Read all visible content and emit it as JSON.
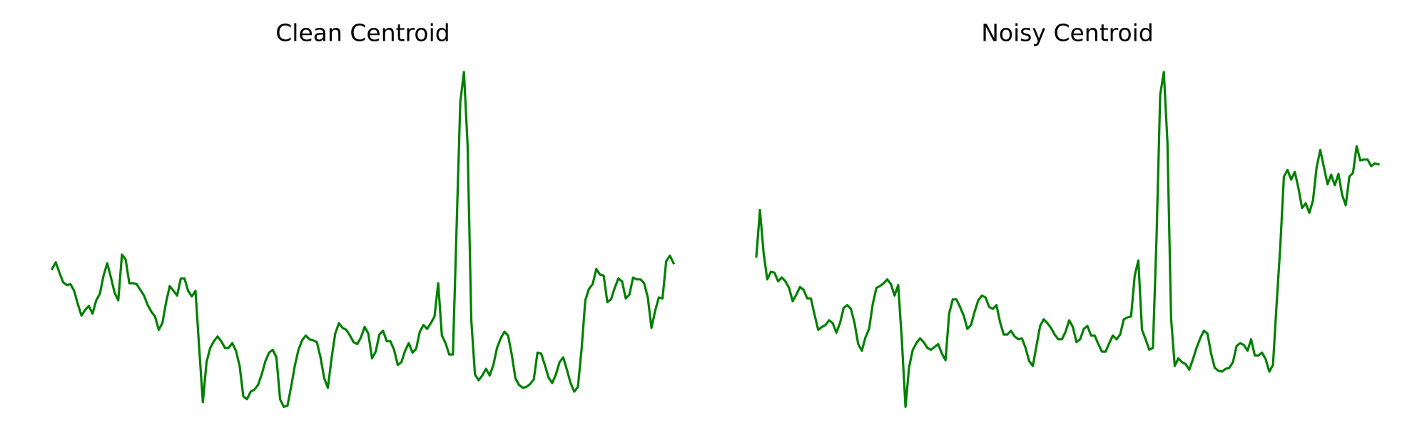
{
  "chart_data": [
    {
      "type": "line",
      "title": "Clean Centroid",
      "color": "#008000",
      "ylim": [
        0,
        360
      ],
      "values": [
        147,
        154,
        143,
        133,
        130,
        131,
        124,
        110,
        98,
        104,
        108,
        100,
        114,
        121,
        140,
        153,
        138,
        122,
        114,
        162,
        157,
        132,
        132,
        131,
        125,
        119,
        109,
        102,
        97,
        83,
        90,
        112,
        129,
        124,
        119,
        137,
        137,
        124,
        118,
        124,
        64,
        7,
        49,
        64,
        71,
        76,
        71,
        64,
        64,
        69,
        61,
        45,
        13,
        10,
        18,
        20,
        25,
        36,
        50,
        59,
        62,
        54,
        10,
        2,
        3,
        23,
        45,
        62,
        72,
        77,
        73,
        72,
        70,
        54,
        32,
        22,
        53,
        79,
        90,
        85,
        83,
        77,
        70,
        68,
        75,
        86,
        79,
        53,
        60,
        78,
        82,
        71,
        71,
        62,
        46,
        49,
        61,
        69,
        59,
        63,
        81,
        88,
        84,
        90,
        97,
        132,
        77,
        69,
        57,
        57,
        190,
        322,
        354,
        277,
        93,
        36,
        30,
        35,
        42,
        35,
        46,
        64,
        74,
        81,
        77,
        57,
        32,
        25,
        22,
        23,
        26,
        31,
        59,
        58,
        46,
        33,
        27,
        36,
        49,
        54,
        41,
        27,
        18,
        23,
        63,
        114,
        126,
        131,
        147,
        141,
        140,
        112,
        115,
        127,
        137,
        134,
        116,
        120,
        138,
        136,
        136,
        132,
        117,
        85,
        103,
        117,
        116,
        155,
        161,
        153
      ]
    },
    {
      "type": "line",
      "title": "Noisy Centroid",
      "color": "#008000",
      "ylim": [
        0,
        360
      ],
      "values": [
        160,
        209,
        164,
        136,
        144,
        143,
        134,
        138,
        134,
        127,
        113,
        120,
        128,
        125,
        116,
        116,
        99,
        83,
        86,
        88,
        93,
        90,
        80,
        90,
        106,
        109,
        105,
        90,
        68,
        61,
        75,
        84,
        110,
        127,
        129,
        132,
        136,
        131,
        119,
        130,
        72,
        2,
        44,
        62,
        69,
        74,
        70,
        64,
        62,
        65,
        68,
        58,
        51,
        100,
        115,
        115,
        107,
        98,
        84,
        88,
        102,
        114,
        119,
        117,
        107,
        105,
        109,
        91,
        78,
        78,
        82,
        76,
        73,
        74,
        64,
        50,
        45,
        66,
        87,
        94,
        90,
        85,
        78,
        73,
        73,
        81,
        93,
        86,
        70,
        73,
        84,
        87,
        77,
        77,
        68,
        60,
        60,
        69,
        77,
        73,
        78,
        94,
        96,
        97,
        140,
        156,
        83,
        73,
        62,
        64,
        180,
        330,
        354,
        280,
        95,
        45,
        53,
        49,
        47,
        41,
        52,
        64,
        74,
        82,
        79,
        58,
        43,
        40,
        39,
        42,
        43,
        49,
        66,
        69,
        67,
        61,
        73,
        56,
        56,
        59,
        52,
        39,
        46,
        110,
        170,
        244,
        251,
        241,
        249,
        232,
        211,
        216,
        206,
        219,
        254,
        272,
        254,
        236,
        246,
        235,
        247,
        225,
        214,
        244,
        248,
        276,
        261,
        262,
        262,
        255,
        258,
        257
      ]
    }
  ]
}
